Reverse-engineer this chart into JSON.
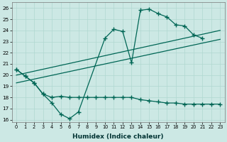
{
  "xlabel": "Humidex (Indice chaleur)",
  "bg_color": "#cce8e4",
  "grid_color": "#b0d8d0",
  "line_color": "#006655",
  "xlim": [
    -0.5,
    23.5
  ],
  "ylim": [
    15.8,
    26.5
  ],
  "line1_x": [
    0,
    1,
    2,
    3,
    4,
    5,
    6,
    7,
    10,
    11,
    12,
    13,
    14,
    15,
    16,
    17,
    18,
    19,
    20,
    21
  ],
  "line1_y": [
    20.5,
    19.9,
    19.3,
    18.3,
    17.5,
    16.5,
    16.1,
    16.7,
    23.3,
    24.1,
    23.9,
    21.1,
    25.8,
    25.9,
    25.5,
    25.2,
    24.5,
    24.4,
    23.6,
    23.3
  ],
  "line2_x": [
    0,
    1,
    2,
    3,
    4,
    5,
    6,
    7,
    8,
    9,
    10,
    11,
    12,
    13,
    14,
    15,
    16,
    17,
    18,
    19,
    20,
    21,
    22,
    23
  ],
  "line2_y": [
    20.5,
    19.9,
    19.3,
    18.3,
    18.0,
    18.1,
    18.0,
    18.0,
    18.0,
    18.0,
    18.0,
    18.0,
    18.0,
    18.0,
    17.8,
    17.7,
    17.6,
    17.5,
    17.5,
    17.4,
    17.4,
    17.4,
    17.4,
    17.4
  ],
  "line3_x": [
    0,
    23
  ],
  "line3_y": [
    19.3,
    23.2
  ],
  "line4_x": [
    0,
    23
  ],
  "line4_y": [
    20.0,
    24.0
  ]
}
